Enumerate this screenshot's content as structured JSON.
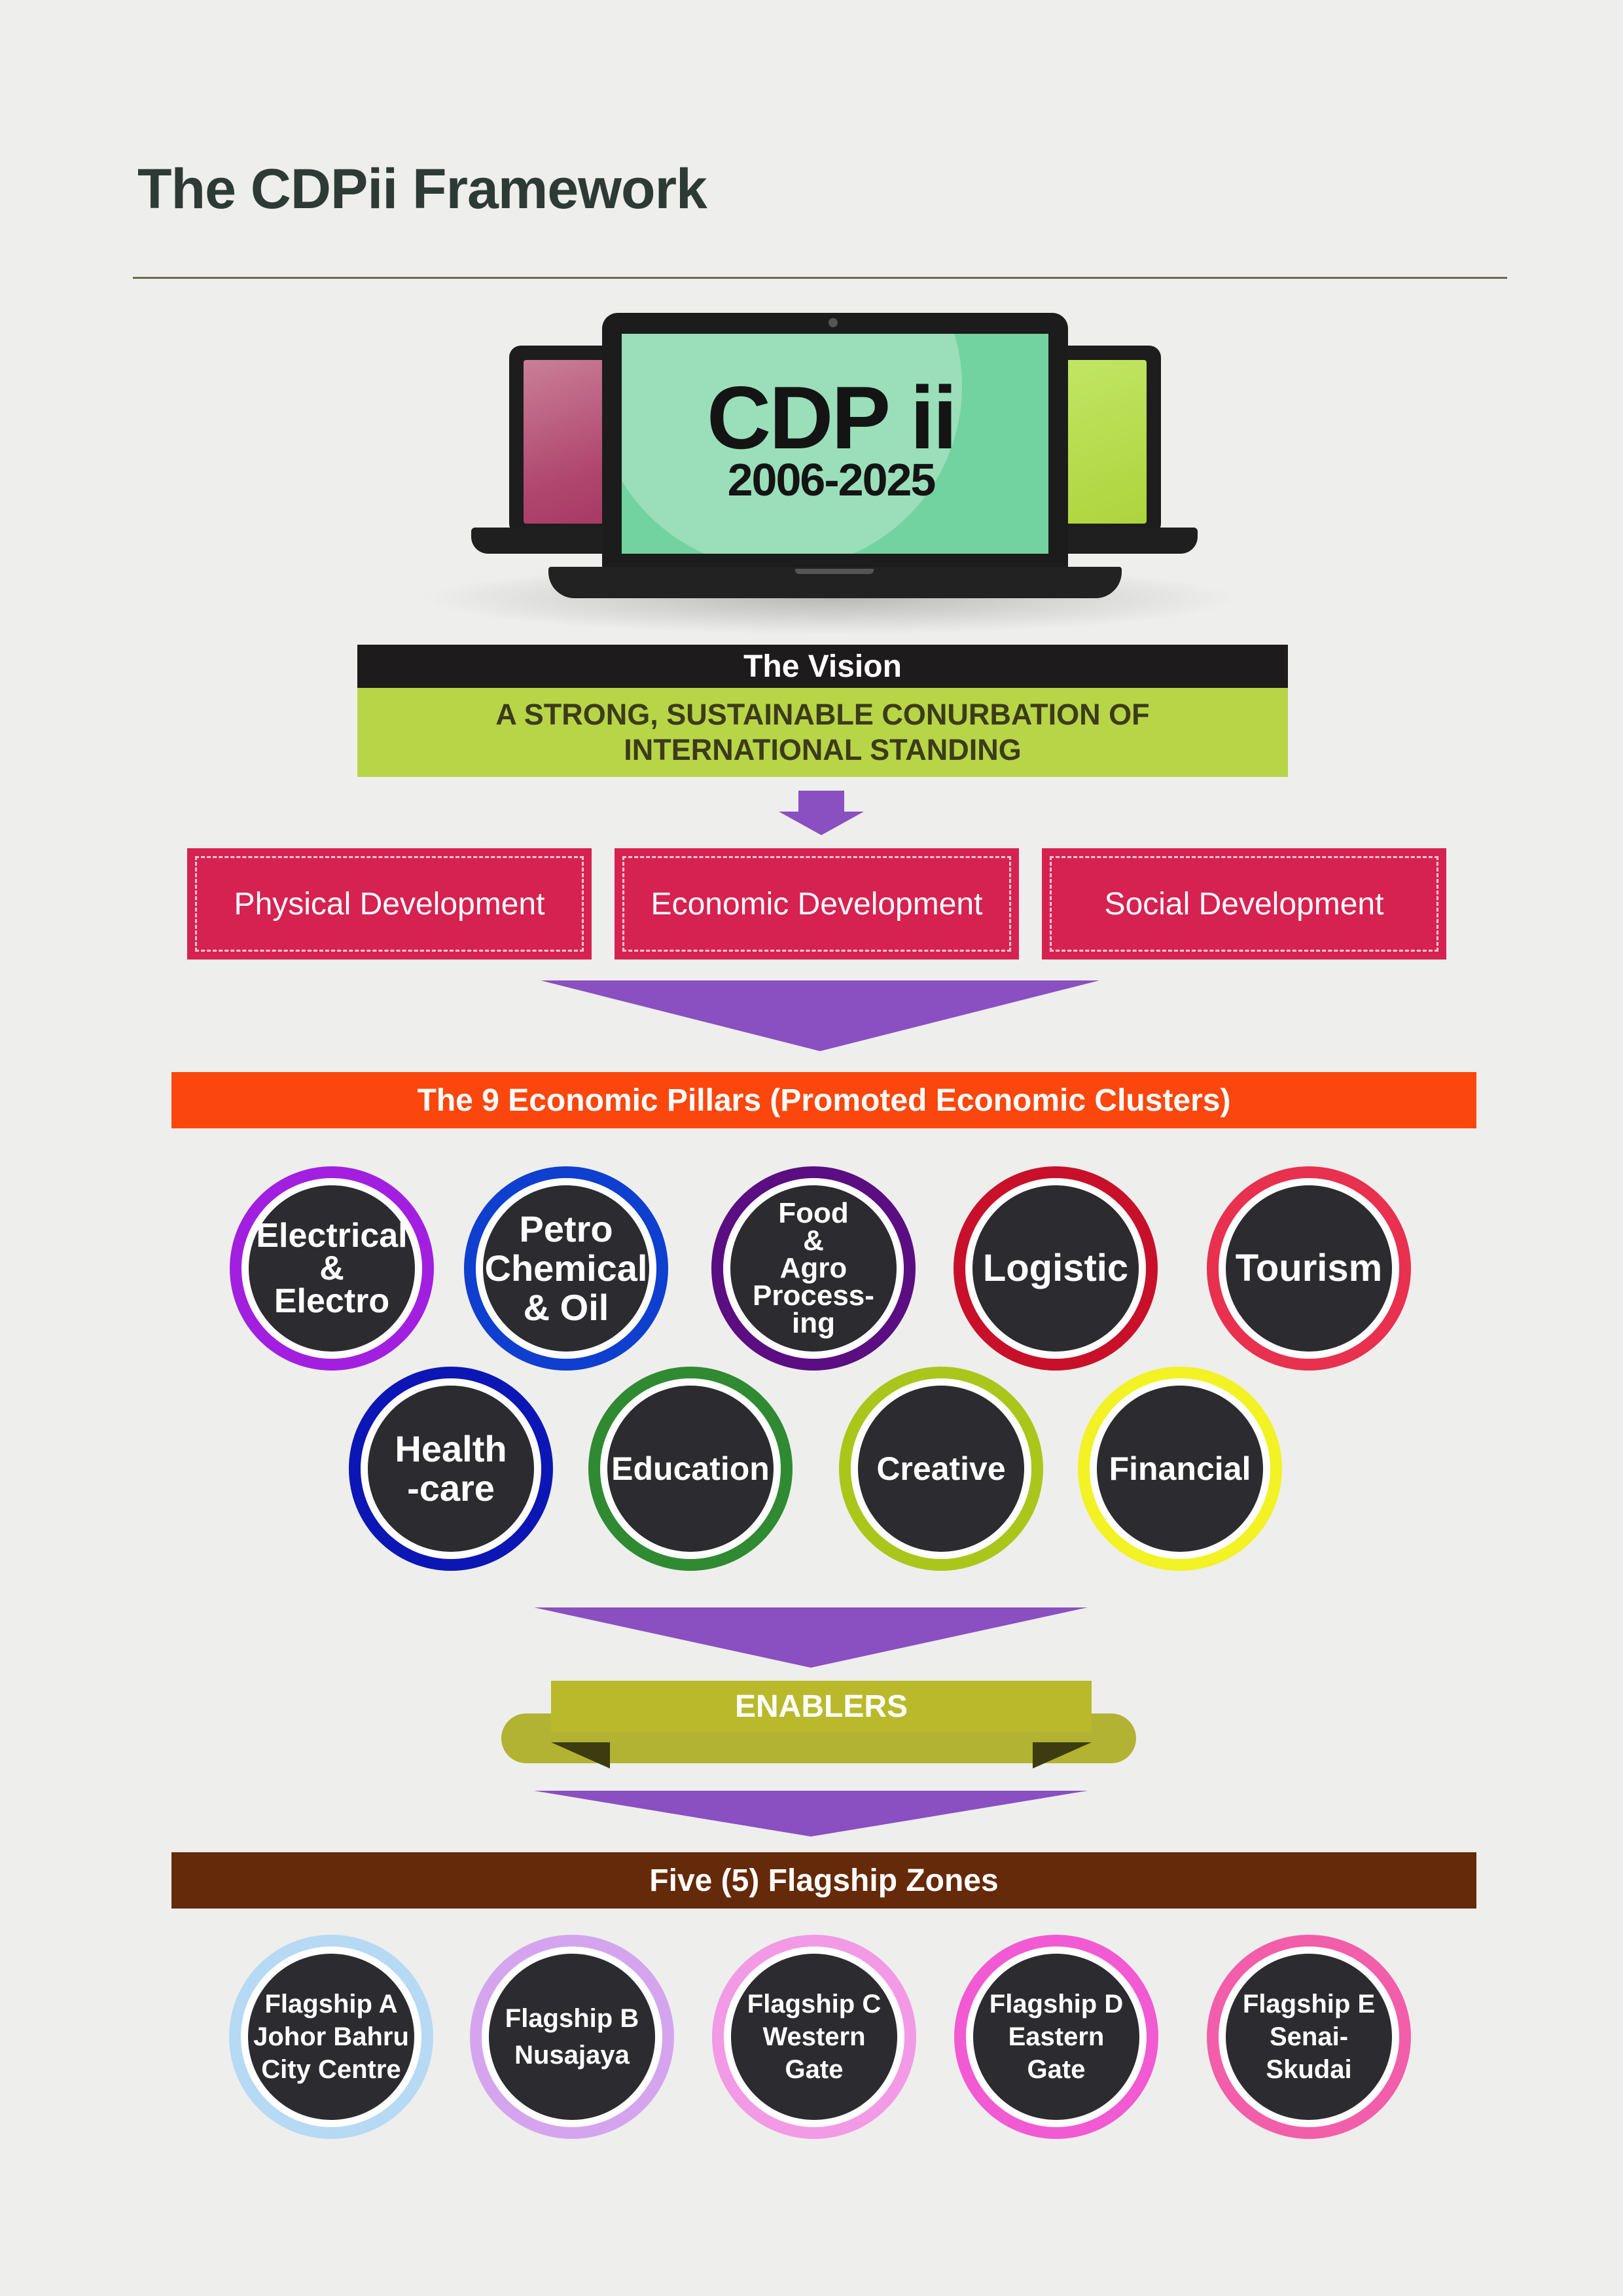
{
  "page_title": "The CDPii Framework",
  "hero": {
    "title": "CDP ii",
    "years": "2006-2025"
  },
  "vision": {
    "heading": "The Vision",
    "line1": "A STRONG, SUSTAINABLE CONURBATION OF",
    "line2": "INTERNATIONAL STANDING"
  },
  "development_areas": [
    "Physical Development",
    "Economic Development",
    "Social Development"
  ],
  "pillars": {
    "heading": "The 9 Economic Pillars (Promoted Economic Clusters)",
    "items": [
      {
        "lines": [
          "Electrical",
          "&",
          "Electro"
        ],
        "color": "#a21fe0"
      },
      {
        "lines": [
          "Petro",
          "Chemical",
          "& Oil"
        ],
        "color": "#0f3fcf"
      },
      {
        "lines": [
          "Food",
          "&",
          "Agro",
          "Process-",
          "ing"
        ],
        "color": "#5b0d82"
      },
      {
        "lines": [
          "Logistic"
        ],
        "color": "#c8102a"
      },
      {
        "lines": [
          "Tourism"
        ],
        "color": "#e8304f"
      },
      {
        "lines": [
          "Health",
          "-care"
        ],
        "color": "#0c16b5"
      },
      {
        "lines": [
          "Education"
        ],
        "color": "#2f8a32"
      },
      {
        "lines": [
          "Creative"
        ],
        "color": "#abc61b"
      },
      {
        "lines": [
          "Financial"
        ],
        "color": "#f2f224"
      }
    ]
  },
  "enablers": {
    "label": "ENABLERS"
  },
  "flagships": {
    "heading": "Five (5) Flagship Zones",
    "items": [
      {
        "lines": [
          "Flagship A",
          "Johor Bahru",
          "City Centre"
        ],
        "color": "#b6d9f4"
      },
      {
        "lines": [
          "Flagship B",
          "Nusajaya"
        ],
        "color": "#d4a5ee"
      },
      {
        "lines": [
          "Flagship C",
          "Western",
          "Gate"
        ],
        "color": "#f29ae6"
      },
      {
        "lines": [
          "Flagship D",
          "Eastern",
          "Gate"
        ],
        "color": "#f25ad3"
      },
      {
        "lines": [
          "Flagship E",
          "Senai-",
          "Skudai"
        ],
        "color": "#f25eaa"
      }
    ]
  },
  "colors": {
    "background": "#eeeeec",
    "arrow": "#8a4fc0",
    "pillars_bar": "#fb470d",
    "flagship_bar": "#652a09",
    "vision_band": "#b7d547",
    "dev_box": "#d62251",
    "enablers": "#b9b92b"
  }
}
